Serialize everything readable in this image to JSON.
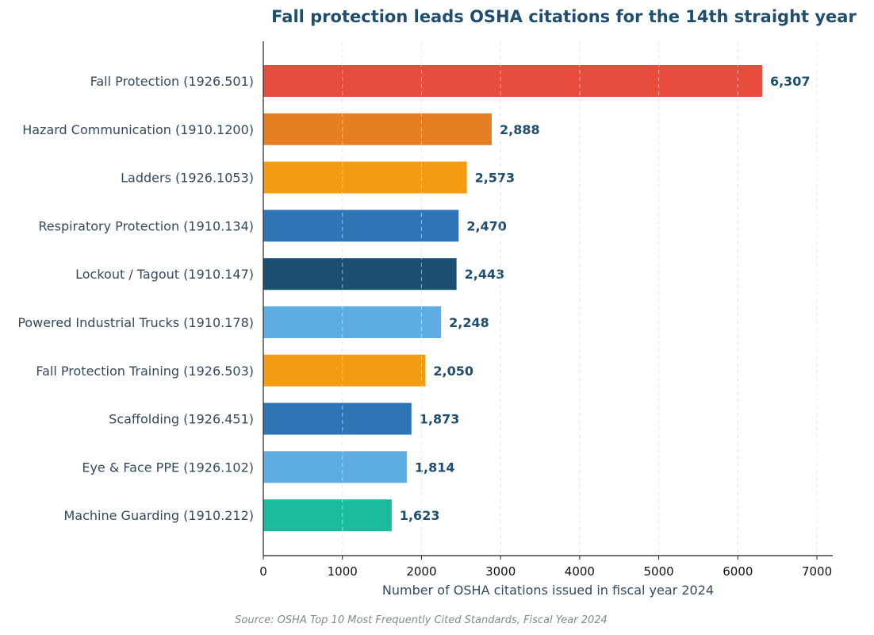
{
  "colors": {
    "title": "#1f4e6e",
    "label": "#34495e",
    "value_label": "#1f4e6e",
    "source": "#7f8c8d",
    "grid": "#d5d5d5",
    "axis": "#222222"
  },
  "chart_data": {
    "type": "bar",
    "orientation": "horizontal",
    "title": "Fall protection leads OSHA citations for the 14th straight year",
    "xlabel": "Number of OSHA citations issued in fiscal year 2024",
    "ylabel": "",
    "xlim": [
      0,
      7200
    ],
    "xticks": [
      0,
      1000,
      2000,
      3000,
      4000,
      5000,
      6000,
      7000
    ],
    "xtick_labels": [
      "0",
      "1000",
      "2000",
      "3000",
      "4000",
      "5000",
      "6000",
      "7000"
    ],
    "grid": "vertical dashed",
    "categories": [
      "Fall Protection (1926.501)",
      "Hazard Communication (1910.1200)",
      "Ladders (1926.1053)",
      "Respiratory Protection (1910.134)",
      "Lockout / Tagout (1910.147)",
      "Powered Industrial Trucks (1910.178)",
      "Fall Protection Training (1926.503)",
      "Scaffolding (1926.451)",
      "Eye & Face PPE (1926.102)",
      "Machine Guarding (1910.212)"
    ],
    "values": [
      6307,
      2888,
      2573,
      2470,
      2443,
      2248,
      2050,
      1873,
      1814,
      1623
    ],
    "value_labels": [
      "6,307",
      "2,888",
      "2,573",
      "2,470",
      "2,443",
      "2,248",
      "2,050",
      "1,873",
      "1,814",
      "1,623"
    ],
    "bar_colors": [
      "#e74c3c",
      "#e67e22",
      "#f39c12",
      "#2e75b6",
      "#1a4e72",
      "#5dade2",
      "#f39c12",
      "#2e75b6",
      "#5dade2",
      "#1abc9c"
    ]
  },
  "source_note": "Source: OSHA Top 10 Most Frequently Cited Standards, Fiscal Year 2024"
}
